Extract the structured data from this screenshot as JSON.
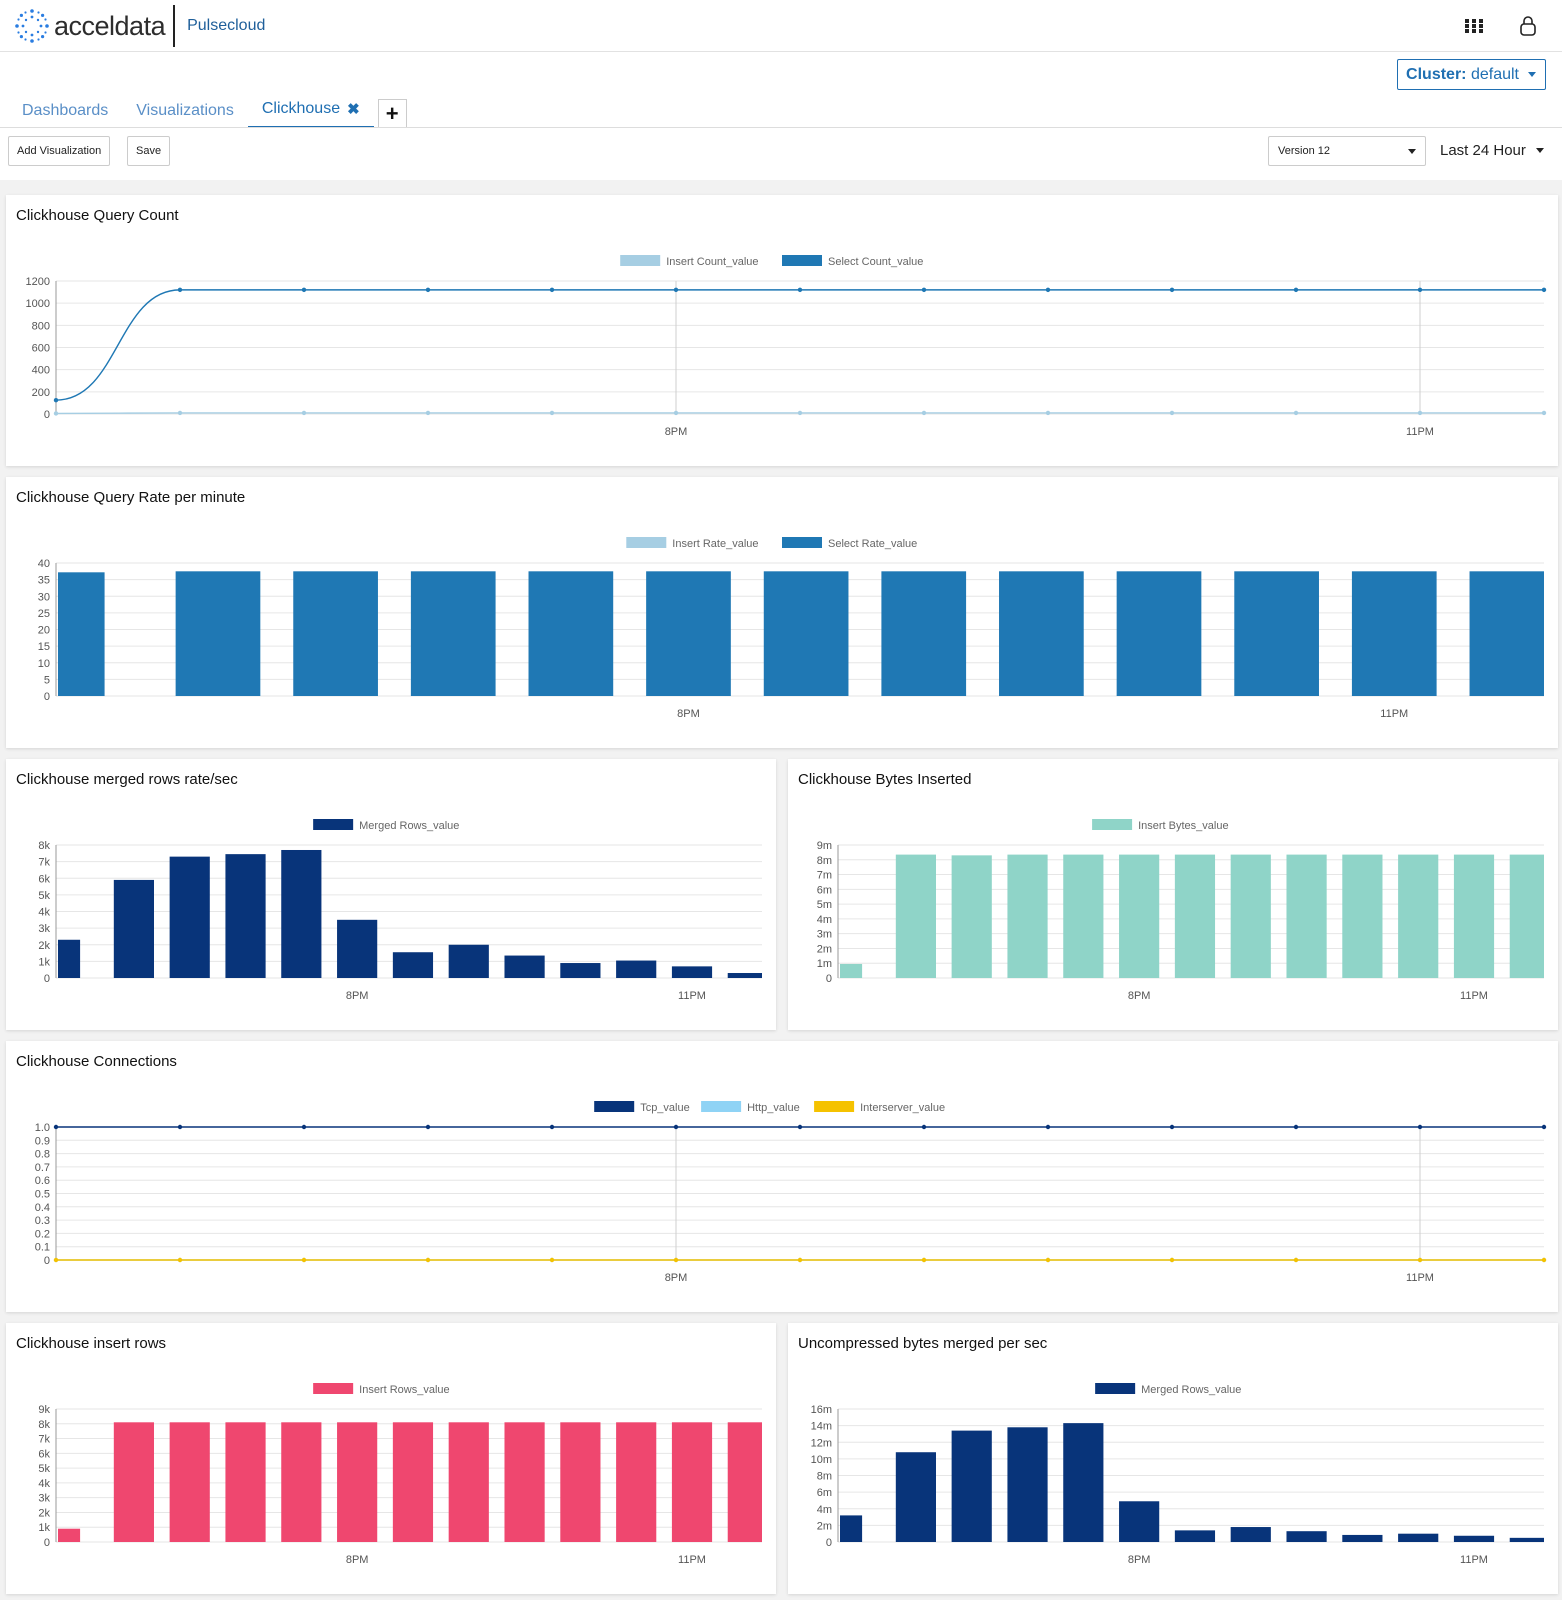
{
  "app": {
    "logo_text": "acceldata",
    "product": "Pulsecloud"
  },
  "header": {
    "apps_icon": "grid-icon",
    "user_icon": "user-icon"
  },
  "cluster": {
    "label": "Cluster:",
    "value": "default"
  },
  "tabs": [
    {
      "label": "Dashboards"
    },
    {
      "label": "Visualizations"
    },
    {
      "label": "Clickhouse"
    }
  ],
  "toolbar": {
    "add_label": "Add Visualization",
    "save_label": "Save",
    "version": "Version 12",
    "range": "Last 24 Hour"
  },
  "colors": {
    "accent": "#1f6fb2",
    "insert_light": "#a6cee3",
    "select_blue": "#1f78b4",
    "navy": "#08347a",
    "teal": "#8fd4c8",
    "http_light": "#8fd3f5",
    "yellow": "#f5c200",
    "pink": "#ef476f"
  },
  "chart_data": [
    {
      "id": "query_count",
      "type": "line",
      "title": "Clickhouse Query Count",
      "ylim": [
        0,
        1200
      ],
      "yticks": [
        "1200",
        "1000",
        "800",
        "600",
        "400",
        "200",
        "0"
      ],
      "xticks": [
        {
          "label": "8PM",
          "at": 5
        },
        {
          "label": "11PM",
          "at": 11
        }
      ],
      "series": [
        {
          "name": "Insert Count_value",
          "color": "#a6cee3",
          "values": [
            5,
            10,
            10,
            10,
            10,
            10,
            10,
            10,
            10,
            10,
            10,
            10,
            10
          ]
        },
        {
          "name": "Select Count_value",
          "color": "#1f78b4",
          "values": [
            125,
            1120,
            1120,
            1120,
            1120,
            1120,
            1120,
            1120,
            1120,
            1120,
            1120,
            1120,
            1120
          ]
        }
      ]
    },
    {
      "id": "query_rate",
      "type": "bar",
      "title": "Clickhouse Query Rate per minute",
      "ylim": [
        0,
        40
      ],
      "yticks": [
        "40",
        "35",
        "30",
        "25",
        "20",
        "15",
        "10",
        "5",
        "0"
      ],
      "xticks": [
        {
          "label": "8PM",
          "at": 5
        },
        {
          "label": "11PM",
          "at": 11
        }
      ],
      "series": [
        {
          "name": "Insert Rate_value",
          "color": "#a6cee3",
          "values": [
            0.2,
            0.2,
            0.2,
            0.2,
            0.2,
            0.2,
            0.2,
            0.2,
            0.2,
            0.2,
            0.2,
            0.2,
            0.2
          ]
        },
        {
          "name": "Select Rate_value",
          "color": "#1f78b4",
          "values": [
            37.2,
            37.5,
            37.5,
            37.5,
            37.5,
            37.5,
            37.5,
            37.5,
            37.5,
            37.5,
            37.5,
            37.5,
            37.5
          ]
        }
      ]
    },
    {
      "id": "merged_rows",
      "type": "bar",
      "title": "Clickhouse merged rows rate/sec",
      "ylim": [
        0,
        8000
      ],
      "yticks": [
        "8k",
        "7k",
        "6k",
        "5k",
        "4k",
        "3k",
        "2k",
        "1k",
        "0"
      ],
      "xticks": [
        {
          "label": "8PM",
          "at": 5
        },
        {
          "label": "11PM",
          "at": 11
        }
      ],
      "series": [
        {
          "name": "Merged Rows_value",
          "color": "#08347a",
          "values": [
            2300,
            5900,
            7300,
            7450,
            7700,
            3500,
            1550,
            2000,
            1350,
            900,
            1050,
            700,
            300
          ]
        }
      ]
    },
    {
      "id": "bytes_inserted",
      "type": "bar",
      "title": "Clickhouse Bytes Inserted",
      "ylim": [
        0,
        9000000
      ],
      "yticks": [
        "9m",
        "8m",
        "7m",
        "6m",
        "5m",
        "4m",
        "3m",
        "2m",
        "1m",
        "0"
      ],
      "xticks": [
        {
          "label": "8PM",
          "at": 5
        },
        {
          "label": "11PM",
          "at": 11
        }
      ],
      "series": [
        {
          "name": "Insert Bytes_value",
          "color": "#8fd4c8",
          "values": [
            950000,
            8350000,
            8300000,
            8350000,
            8350000,
            8350000,
            8350000,
            8350000,
            8350000,
            8350000,
            8350000,
            8350000,
            8350000
          ]
        }
      ]
    },
    {
      "id": "connections",
      "type": "line",
      "title": "Clickhouse Connections",
      "ylim": [
        0,
        1
      ],
      "yticks": [
        "1.0",
        "0.9",
        "0.8",
        "0.7",
        "0.6",
        "0.5",
        "0.4",
        "0.3",
        "0.2",
        "0.1",
        "0"
      ],
      "xticks": [
        {
          "label": "8PM",
          "at": 5
        },
        {
          "label": "11PM",
          "at": 11
        }
      ],
      "series": [
        {
          "name": "Tcp_value",
          "color": "#08347a",
          "values": [
            1,
            1,
            1,
            1,
            1,
            1,
            1,
            1,
            1,
            1,
            1,
            1,
            1
          ]
        },
        {
          "name": "Http_value",
          "color": "#8fd3f5",
          "values": [
            0,
            0,
            0,
            0,
            0,
            0,
            0,
            0,
            0,
            0,
            0,
            0,
            0
          ]
        },
        {
          "name": "Interserver_value",
          "color": "#f5c200",
          "values": [
            0,
            0,
            0,
            0,
            0,
            0,
            0,
            0,
            0,
            0,
            0,
            0,
            0
          ]
        }
      ]
    },
    {
      "id": "insert_rows",
      "type": "bar",
      "title": "Clickhouse insert rows",
      "ylim": [
        0,
        9000
      ],
      "yticks": [
        "9k",
        "8k",
        "7k",
        "6k",
        "5k",
        "4k",
        "3k",
        "2k",
        "1k",
        "0"
      ],
      "xticks": [
        {
          "label": "8PM",
          "at": 5
        },
        {
          "label": "11PM",
          "at": 11
        }
      ],
      "series": [
        {
          "name": "Insert Rows_value",
          "color": "#ef476f",
          "values": [
            900,
            8100,
            8100,
            8100,
            8100,
            8100,
            8100,
            8100,
            8100,
            8100,
            8100,
            8100,
            8100
          ]
        }
      ]
    },
    {
      "id": "uncompressed_merged",
      "type": "bar",
      "title": "Uncompressed bytes merged per sec",
      "ylim": [
        0,
        16000000
      ],
      "yticks": [
        "16m",
        "14m",
        "12m",
        "10m",
        "8m",
        "6m",
        "4m",
        "2m",
        "0"
      ],
      "xticks": [
        {
          "label": "8PM",
          "at": 5
        },
        {
          "label": "11PM",
          "at": 11
        }
      ],
      "series": [
        {
          "name": "Merged Rows_value",
          "color": "#08347a",
          "values": [
            3200000,
            10800000,
            13400000,
            13800000,
            14300000,
            4900000,
            1400000,
            1800000,
            1300000,
            850000,
            1000000,
            750000,
            500000
          ]
        }
      ]
    }
  ]
}
